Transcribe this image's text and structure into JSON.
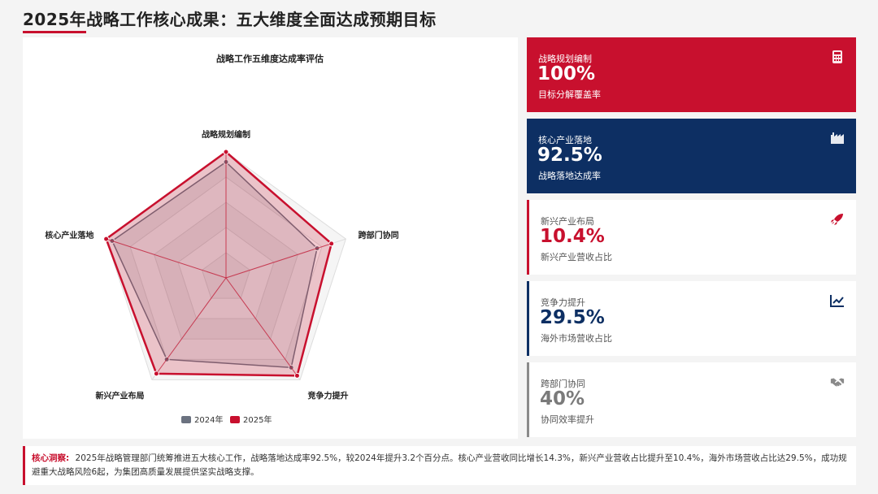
{
  "header": {
    "title": "2025年战略工作核心成果：五大维度全面达成预期目标"
  },
  "colors": {
    "accent_red": "#c8102e",
    "navy": "#0d2f63",
    "gray": "#6b7280"
  },
  "chart_data": {
    "type": "radar",
    "title": "战略工作五维度达成率评估",
    "axes": [
      "战略规划编制",
      "跨部门协同",
      "竞争力提升",
      "新兴产业布局",
      "核心产业落地"
    ],
    "range": [
      0,
      100
    ],
    "levels": 5,
    "series": [
      {
        "name": "2024年",
        "color": "#6b7280",
        "values": [
          92,
          76,
          88,
          80,
          95
        ]
      },
      {
        "name": "2025年",
        "color": "#c8102e",
        "values": [
          100,
          88,
          96,
          94,
          100
        ]
      }
    ],
    "legend": [
      "2024年",
      "2025年"
    ],
    "legend_position": "bottom"
  },
  "cards": [
    {
      "label": "战略规划编制",
      "value": "100%",
      "sub": "目标分解覆盖率",
      "icon": "calculator-icon"
    },
    {
      "label": "核心产业落地",
      "value": "92.5%",
      "sub": "战略落地达成率",
      "icon": "factory-icon"
    },
    {
      "label": "新兴产业布局",
      "value": "10.4%",
      "sub": "新兴产业营收占比",
      "icon": "rocket-icon"
    },
    {
      "label": "竞争力提升",
      "value": "29.5%",
      "sub": "海外市场营收占比",
      "icon": "chart-line-icon"
    },
    {
      "label": "跨部门协同",
      "value": "40%",
      "sub": "协同效率提升",
      "icon": "handshake-icon"
    }
  ],
  "insight": {
    "label": "核心洞察:",
    "text": "2025年战略管理部门统筹推进五大核心工作，战略落地达成率92.5%，较2024年提升3.2个百分点。核心产业营收同比增长14.3%，新兴产业营收占比提升至10.4%，海外市场营收占比达29.5%，成功规避重大战略风险6起，为集团高质量发展提供坚实战略支撑。"
  }
}
